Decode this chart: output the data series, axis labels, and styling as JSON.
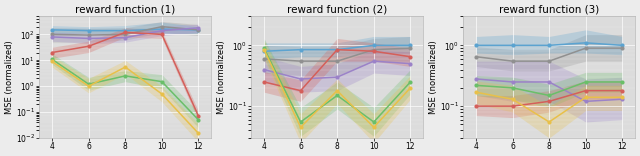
{
  "titles": [
    "reward function (1)",
    "reward function (2)",
    "reward function (3)"
  ],
  "x": [
    4,
    6,
    8,
    10,
    12
  ],
  "colors": {
    "blue": "#5BA3D0",
    "gray": "#909090",
    "purple": "#9B82C8",
    "red": "#D45F5A",
    "green": "#6ABF69",
    "orange": "#E8C04A"
  },
  "plot1": {
    "blue_mean": [
      150.0,
      140.0,
      140.0,
      160.0,
      150.0
    ],
    "blue_lo": [
      110.0,
      110.0,
      110.0,
      110.0,
      110.0
    ],
    "blue_hi": [
      220.0,
      200.0,
      220.0,
      300.0,
      200.0
    ],
    "gray_mean": [
      100.0,
      95.0,
      100.0,
      200.0,
      150.0
    ],
    "gray_lo": [
      50.0,
      50.0,
      60.0,
      120.0,
      90.0
    ],
    "gray_hi": [
      180.0,
      170.0,
      180.0,
      320.0,
      240.0
    ],
    "purple_mean": [
      80.0,
      70.0,
      75.0,
      140.0,
      180.0
    ],
    "purple_lo": [
      55.0,
      45.0,
      50.0,
      90.0,
      120.0
    ],
    "purple_hi": [
      120.0,
      110.0,
      110.0,
      210.0,
      250.0
    ],
    "red_mean": [
      20.0,
      35.0,
      120.0,
      100.0,
      0.07
    ],
    "red_lo": [
      12.0,
      20.0,
      80.0,
      70.0,
      0.045
    ],
    "red_hi": [
      32.0,
      55.0,
      180.0,
      140.0,
      0.11
    ],
    "green_mean": [
      11.0,
      1.2,
      2.5,
      1.5,
      0.05
    ],
    "green_lo": [
      7.0,
      0.7,
      1.5,
      0.8,
      0.025
    ],
    "green_hi": [
      18.0,
      2.2,
      4.0,
      2.8,
      0.1
    ],
    "orange_mean": [
      9.0,
      1.0,
      5.5,
      0.5,
      0.015
    ],
    "orange_lo": [
      5.5,
      0.55,
      3.0,
      0.25,
      0.007
    ],
    "orange_hi": [
      15.0,
      2.0,
      10.0,
      1.0,
      0.035
    ]
  },
  "plot2": {
    "blue_mean": [
      0.8,
      0.85,
      0.85,
      1.0,
      1.0
    ],
    "blue_lo": [
      0.6,
      0.65,
      0.65,
      0.75,
      0.75
    ],
    "blue_hi": [
      1.1,
      1.1,
      1.1,
      1.4,
      1.4
    ],
    "gray_mean": [
      0.6,
      0.55,
      0.55,
      0.85,
      0.9
    ],
    "gray_lo": [
      0.35,
      0.32,
      0.32,
      0.55,
      0.55
    ],
    "gray_hi": [
      1.0,
      0.95,
      0.95,
      1.3,
      1.4
    ],
    "purple_mean": [
      0.4,
      0.28,
      0.3,
      0.55,
      0.5
    ],
    "purple_lo": [
      0.25,
      0.17,
      0.18,
      0.35,
      0.32
    ],
    "purple_hi": [
      0.65,
      0.45,
      0.5,
      0.85,
      0.78
    ],
    "red_mean": [
      0.25,
      0.18,
      0.85,
      0.8,
      0.65
    ],
    "red_lo": [
      0.17,
      0.12,
      0.55,
      0.55,
      0.45
    ],
    "red_hi": [
      0.37,
      0.27,
      1.3,
      1.1,
      0.9
    ],
    "green_mean": [
      0.9,
      0.055,
      0.15,
      0.055,
      0.25
    ],
    "green_lo": [
      0.65,
      0.032,
      0.09,
      0.032,
      0.16
    ],
    "green_hi": [
      1.3,
      0.095,
      0.25,
      0.095,
      0.4
    ],
    "orange_mean": [
      0.85,
      0.045,
      0.18,
      0.045,
      0.2
    ],
    "orange_lo": [
      0.6,
      0.025,
      0.11,
      0.025,
      0.13
    ],
    "orange_hi": [
      1.2,
      0.075,
      0.28,
      0.075,
      0.32
    ]
  },
  "plot3": {
    "blue_mean": [
      1.0,
      1.0,
      1.0,
      1.1,
      1.0
    ],
    "blue_lo": [
      0.75,
      0.7,
      0.75,
      0.75,
      0.7
    ],
    "blue_hi": [
      1.4,
      1.5,
      1.4,
      1.8,
      1.4
    ],
    "gray_mean": [
      0.65,
      0.55,
      0.55,
      0.9,
      0.9
    ],
    "gray_lo": [
      0.45,
      0.38,
      0.38,
      0.55,
      0.55
    ],
    "gray_hi": [
      0.95,
      0.85,
      0.85,
      1.5,
      1.5
    ],
    "purple_mean": [
      0.28,
      0.25,
      0.25,
      0.12,
      0.13
    ],
    "purple_lo": [
      0.15,
      0.12,
      0.12,
      0.055,
      0.06
    ],
    "purple_hi": [
      0.55,
      0.55,
      0.55,
      0.28,
      0.3
    ],
    "red_mean": [
      0.1,
      0.1,
      0.12,
      0.18,
      0.18
    ],
    "red_lo": [
      0.07,
      0.065,
      0.08,
      0.13,
      0.13
    ],
    "red_hi": [
      0.15,
      0.15,
      0.18,
      0.26,
      0.26
    ],
    "green_mean": [
      0.22,
      0.2,
      0.15,
      0.25,
      0.25
    ],
    "green_lo": [
      0.15,
      0.13,
      0.095,
      0.17,
      0.17
    ],
    "green_hi": [
      0.32,
      0.3,
      0.23,
      0.36,
      0.36
    ],
    "orange_mean": [
      0.17,
      0.13,
      0.055,
      0.14,
      0.14
    ],
    "orange_lo": [
      0.11,
      0.08,
      0.03,
      0.085,
      0.085
    ],
    "orange_hi": [
      0.26,
      0.22,
      0.1,
      0.22,
      0.22
    ]
  },
  "ylim1": [
    0.01,
    500
  ],
  "ylim2": [
    0.03,
    3
  ],
  "ylim3": [
    0.03,
    3
  ],
  "bg_color": "#DCDCDC",
  "fig_color": "#ECECEC",
  "title_fontsize": 7.5,
  "tick_fontsize": 5.5,
  "label_fontsize": 6
}
